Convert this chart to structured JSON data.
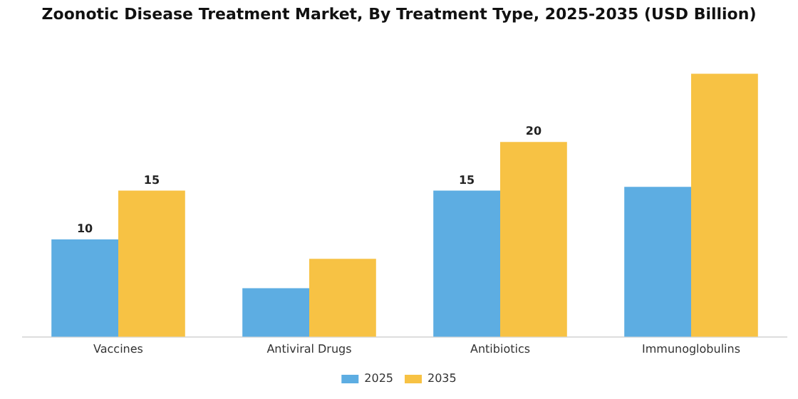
{
  "chart_data": {
    "type": "bar",
    "title": "Zoonotic Disease Treatment Market, By Treatment Type, 2025-2035 (USD Billion)",
    "categories": [
      "Vaccines",
      "Antiviral Drugs",
      "Antibiotics",
      "Immunoglobulins"
    ],
    "series": [
      {
        "name": "2025",
        "color": "#5dade2",
        "values": [
          10,
          5,
          15,
          15.4
        ],
        "value_labels": [
          "10",
          null,
          "15",
          null
        ]
      },
      {
        "name": "2035",
        "color": "#f7c244",
        "values": [
          15,
          8,
          20,
          27
        ],
        "value_labels": [
          "15",
          null,
          "20",
          null
        ]
      }
    ],
    "tick_labels": "x",
    "grid": false,
    "legend": "bottom"
  }
}
